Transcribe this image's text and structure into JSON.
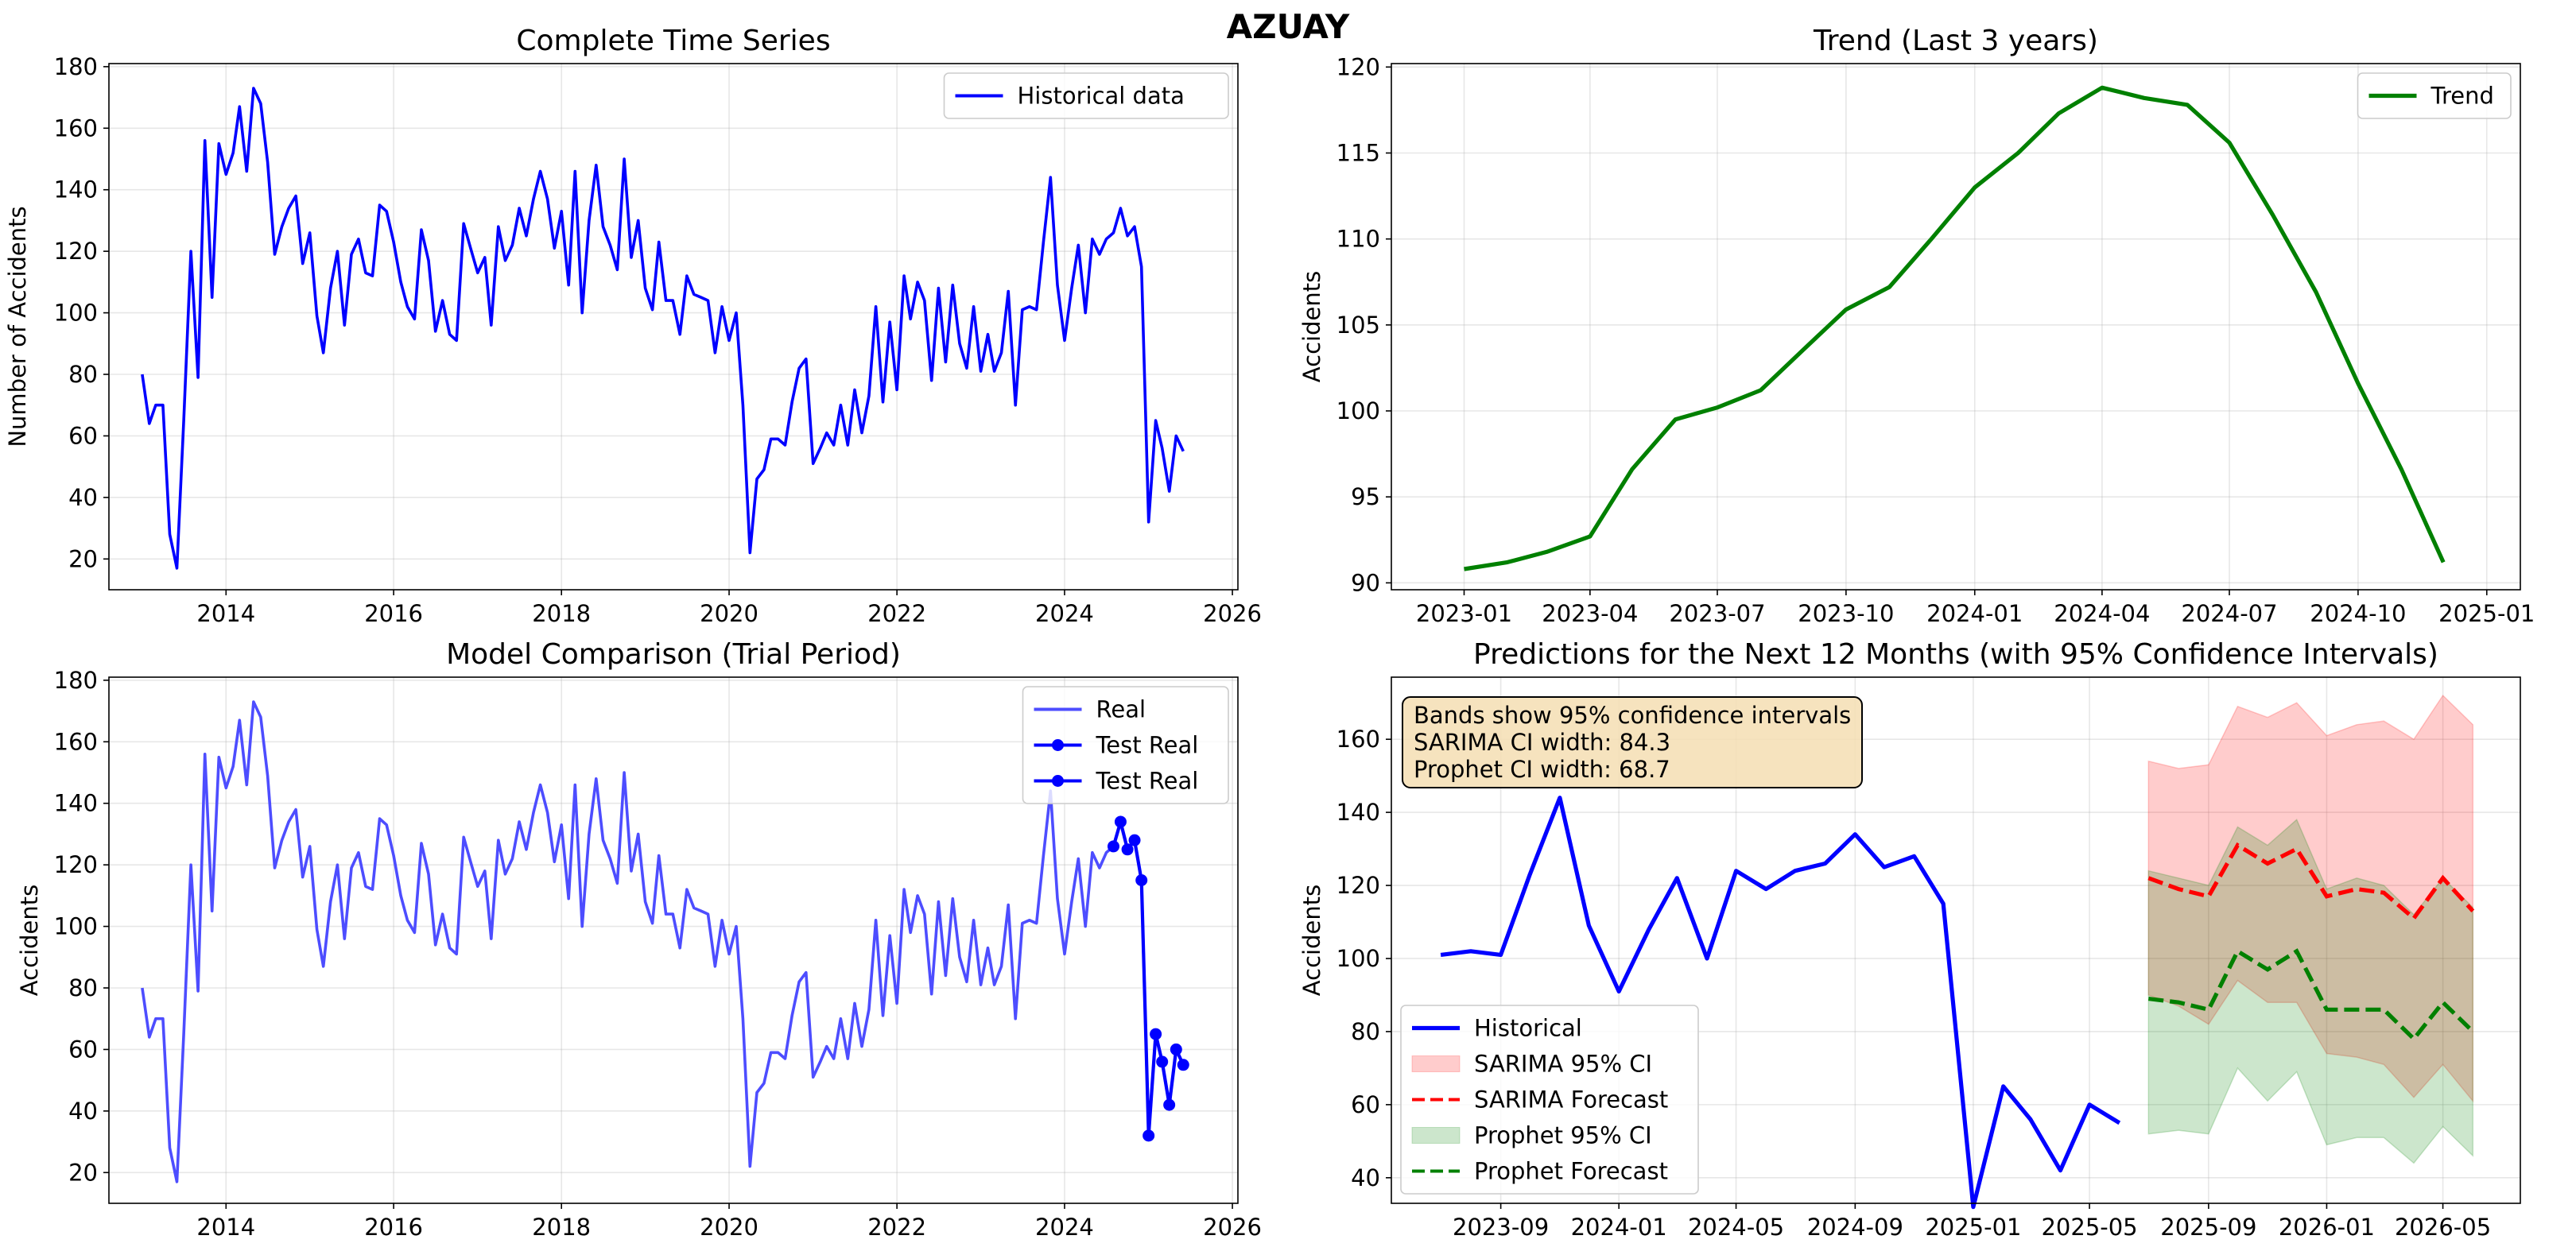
{
  "figure": {
    "suptitle": "AZUAY"
  },
  "chart_data": [
    {
      "id": "complete",
      "type": "line",
      "title": "Complete Time Series",
      "xlabel": "",
      "ylabel": "Number of Accidents",
      "x_type": "date",
      "xlim": [
        "2012-08-09",
        "2026-01-25"
      ],
      "ylim": [
        10,
        181
      ],
      "xticks": [
        "2014-01-01",
        "2016-01-01",
        "2018-01-01",
        "2020-01-01",
        "2022-01-01",
        "2024-01-01",
        "2026-01-01"
      ],
      "xtick_labels": [
        "2014",
        "2016",
        "2018",
        "2020",
        "2022",
        "2024",
        "2026"
      ],
      "yticks": [
        20,
        40,
        60,
        80,
        100,
        120,
        140,
        160,
        180
      ],
      "grid": true,
      "legend": {
        "position": "top-right",
        "entries": [
          {
            "label": "Historical data",
            "color": "#0000ff",
            "style": "line"
          }
        ]
      },
      "series_ref": "monthly",
      "series_color": "#0000ff"
    },
    {
      "id": "trend",
      "type": "line",
      "title": "Trend (Last 3 years)",
      "xlabel": "",
      "ylabel": "Accidents",
      "x_type": "date",
      "xlim": [
        "2022-11-10",
        "2025-01-25"
      ],
      "ylim": [
        89.6,
        120.2
      ],
      "xticks": [
        "2023-01-01",
        "2023-04-01",
        "2023-07-01",
        "2023-10-01",
        "2024-01-01",
        "2024-04-01",
        "2024-07-01",
        "2024-10-01",
        "2025-01-01"
      ],
      "xtick_labels": [
        "2023-01",
        "2023-04",
        "2023-07",
        "2023-10",
        "2024-01",
        "2024-04",
        "2024-07",
        "2024-10",
        "2025-01"
      ],
      "yticks": [
        90,
        95,
        100,
        105,
        110,
        115,
        120
      ],
      "grid": true,
      "legend": {
        "position": "top-right",
        "entries": [
          {
            "label": "Trend",
            "color": "#008000",
            "style": "line"
          }
        ]
      },
      "series": [
        {
          "name": "Trend",
          "color": "#008000",
          "x": [
            "2023-01-01",
            "2023-02-01",
            "2023-03-01",
            "2023-04-01",
            "2023-05-01",
            "2023-06-01",
            "2023-07-01",
            "2023-08-01",
            "2023-09-01",
            "2023-10-01",
            "2023-11-01",
            "2023-12-01",
            "2024-01-01",
            "2024-02-01",
            "2024-03-01",
            "2024-04-01",
            "2024-05-01",
            "2024-06-01",
            "2024-07-01",
            "2024-08-01",
            "2024-09-01",
            "2024-10-01",
            "2024-11-01",
            "2024-12-01"
          ],
          "y": [
            90.8,
            91.2,
            91.8,
            92.7,
            96.6,
            99.5,
            100.2,
            101.2,
            103.6,
            105.9,
            107.2,
            110.0,
            113.0,
            115.0,
            117.3,
            118.8,
            118.2,
            117.8,
            115.6,
            111.4,
            106.9,
            101.6,
            96.6,
            91.2
          ]
        }
      ]
    },
    {
      "id": "comparison",
      "type": "line",
      "title": "Model Comparison (Trial Period)",
      "xlabel": "",
      "ylabel": "Accidents",
      "x_type": "date",
      "xlim": [
        "2012-08-09",
        "2026-01-25"
      ],
      "ylim": [
        10,
        181
      ],
      "xticks": [
        "2014-01-01",
        "2016-01-01",
        "2018-01-01",
        "2020-01-01",
        "2022-01-01",
        "2024-01-01",
        "2026-01-01"
      ],
      "xtick_labels": [
        "2014",
        "2016",
        "2018",
        "2020",
        "2022",
        "2024",
        "2026"
      ],
      "yticks": [
        20,
        40,
        60,
        80,
        100,
        120,
        140,
        160,
        180
      ],
      "grid": true,
      "legend": {
        "position": "top-right",
        "entries": [
          {
            "label": "Real",
            "color": "#4d4dff",
            "style": "line"
          },
          {
            "label": "Test Real",
            "color": "#0000ff",
            "style": "line-marker"
          },
          {
            "label": "Test Real",
            "color": "#0000ff",
            "style": "line-marker"
          }
        ]
      },
      "series_ref": "monthly",
      "series_color": "#4d4dff",
      "test_start_index": 139,
      "test_color": "#0000ff"
    },
    {
      "id": "forecast",
      "type": "line",
      "title": "Predictions for the Next 12 Months (with 95% Confidence Intervals)",
      "xlabel": "",
      "ylabel": "Accidents",
      "x_type": "date",
      "xlim": [
        "2023-05-11",
        "2026-07-20"
      ],
      "ylim": [
        33,
        177
      ],
      "xticks": [
        "2023-09-01",
        "2024-01-01",
        "2024-05-01",
        "2024-09-01",
        "2025-01-01",
        "2025-05-01",
        "2025-09-01",
        "2026-01-01",
        "2026-05-01"
      ],
      "xtick_labels": [
        "2023-09",
        "2024-01",
        "2024-05",
        "2024-09",
        "2025-01",
        "2025-05",
        "2025-09",
        "2026-01",
        "2026-05"
      ],
      "yticks": [
        40,
        60,
        80,
        100,
        120,
        140,
        160
      ],
      "grid": true,
      "annotation": [
        "Bands show 95% confidence intervals",
        "SARIMA CI width: 84.3",
        "Prophet CI width: 68.7"
      ],
      "legend": {
        "position": "lower-left",
        "entries": [
          {
            "label": "Historical",
            "color": "#0000ff",
            "style": "line"
          },
          {
            "label": "SARIMA 95% CI",
            "color": "#ff0000",
            "style": "patch"
          },
          {
            "label": "SARIMA Forecast",
            "color": "#ff0000",
            "style": "dashed"
          },
          {
            "label": "Prophet 95% CI",
            "color": "#008000",
            "style": "patch"
          },
          {
            "label": "Prophet Forecast",
            "color": "#008000",
            "style": "dashed"
          }
        ]
      },
      "historical": {
        "name": "Historical",
        "color": "#0000ff",
        "x": [
          "2023-07-01",
          "2023-08-01",
          "2023-09-01",
          "2023-10-01",
          "2023-11-01",
          "2023-12-01",
          "2024-01-01",
          "2024-02-01",
          "2024-03-01",
          "2024-04-01",
          "2024-05-01",
          "2024-06-01",
          "2024-07-01",
          "2024-08-01",
          "2024-09-01",
          "2024-10-01",
          "2024-11-01",
          "2024-12-01",
          "2025-01-01",
          "2025-02-01",
          "2025-03-01",
          "2025-04-01",
          "2025-05-01",
          "2025-06-01"
        ],
        "y": [
          101,
          102,
          101,
          123,
          144,
          109,
          91,
          108,
          122,
          100,
          124,
          119,
          124,
          126,
          134,
          125,
          128,
          115,
          32,
          65,
          56,
          42,
          60,
          55
        ]
      },
      "forecast_x": [
        "2025-07-01",
        "2025-08-01",
        "2025-09-01",
        "2025-10-01",
        "2025-11-01",
        "2025-12-01",
        "2026-01-01",
        "2026-02-01",
        "2026-03-01",
        "2026-04-01",
        "2026-05-01",
        "2026-06-01"
      ],
      "sarima": {
        "name": "SARIMA Forecast",
        "ci_name": "SARIMA 95% CI",
        "color": "#ff0000",
        "mean": [
          122,
          119,
          117,
          131,
          126,
          130,
          117,
          119,
          118,
          111,
          122,
          113
        ],
        "upper": [
          154,
          152,
          153,
          169,
          166,
          170,
          161,
          164,
          165,
          160,
          172,
          164
        ],
        "lower": [
          90,
          87,
          82,
          94,
          88,
          88,
          74,
          73,
          71,
          62,
          71,
          61
        ]
      },
      "prophet": {
        "name": "Prophet Forecast",
        "ci_name": "Prophet 95% CI",
        "color": "#008000",
        "mean": [
          89,
          88,
          86,
          102,
          97,
          102,
          86,
          86,
          86,
          78,
          88,
          80
        ],
        "upper": [
          124,
          122,
          120,
          136,
          131,
          138,
          119,
          122,
          120,
          112,
          122,
          114
        ],
        "lower": [
          52,
          53,
          52,
          70,
          61,
          69,
          49,
          51,
          51,
          44,
          54,
          46
        ]
      }
    }
  ],
  "monthly_data": {
    "start": "2013-01",
    "values": [
      80,
      64,
      70,
      70,
      28,
      17,
      65,
      120,
      79,
      156,
      105,
      155,
      145,
      152,
      167,
      146,
      173,
      168,
      149,
      119,
      128,
      134,
      138,
      116,
      126,
      99,
      87,
      108,
      120,
      96,
      119,
      124,
      113,
      112,
      135,
      133,
      123,
      110,
      102,
      98,
      127,
      117,
      94,
      104,
      93,
      91,
      129,
      121,
      113,
      118,
      96,
      128,
      117,
      122,
      134,
      125,
      137,
      146,
      137,
      121,
      133,
      109,
      146,
      100,
      130,
      148,
      128,
      122,
      114,
      150,
      118,
      130,
      108,
      101,
      123,
      104,
      104,
      93,
      112,
      106,
      105,
      104,
      87,
      102,
      91,
      100,
      70,
      22,
      46,
      49,
      59,
      59,
      57,
      71,
      82,
      85,
      51,
      56,
      61,
      57,
      70,
      57,
      75,
      61,
      73,
      102,
      71,
      97,
      75,
      112,
      98,
      110,
      104,
      78,
      108,
      84,
      109,
      90,
      82,
      102,
      81,
      93,
      81,
      87,
      107,
      70,
      101,
      102,
      101,
      123,
      144,
      109,
      91,
      108,
      122,
      100,
      124,
      119,
      124,
      126,
      134,
      125,
      128,
      115,
      32,
      65,
      56,
      42,
      60,
      55
    ]
  }
}
